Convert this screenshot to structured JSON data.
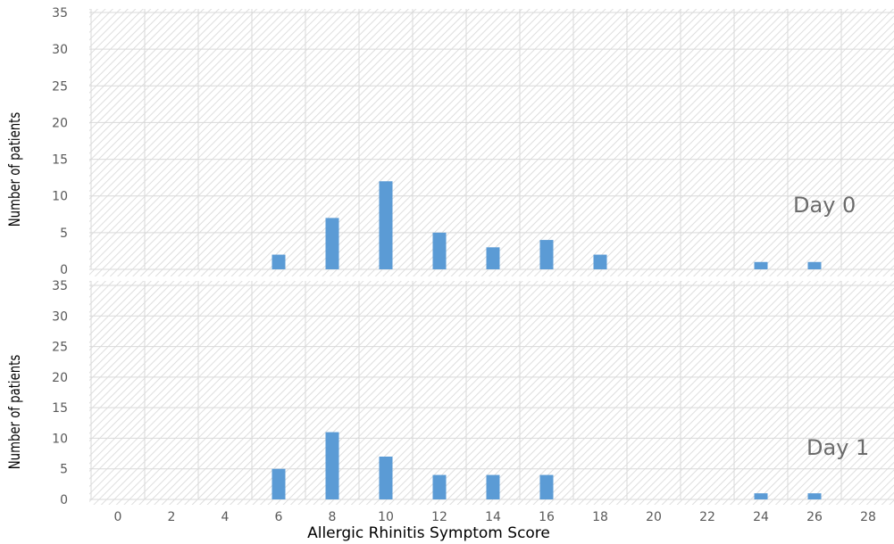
{
  "chart_data": [
    {
      "type": "bar",
      "annotation": "Day 0",
      "ylabel": "Number of patients",
      "xlabel": "",
      "ylim": [
        0,
        35
      ],
      "yticks": [
        0,
        5,
        10,
        15,
        20,
        25,
        30,
        35
      ],
      "x_ticks": [
        0,
        2,
        4,
        6,
        8,
        10,
        12,
        14,
        16,
        18,
        20,
        22,
        24,
        26,
        28
      ],
      "x": [
        6,
        8,
        10,
        12,
        14,
        16,
        18,
        24,
        26
      ],
      "values": [
        2,
        7,
        12,
        5,
        3,
        4,
        2,
        1,
        1
      ],
      "grid": true,
      "bar_color": "#5b9bd5"
    },
    {
      "type": "bar",
      "annotation": "Day 1",
      "ylabel": "Number of patients",
      "xlabel": "Allergic Rhinitis Symptom Score",
      "ylim": [
        0,
        35
      ],
      "yticks": [
        0,
        5,
        10,
        15,
        20,
        25,
        30,
        35
      ],
      "x_ticks": [
        0,
        2,
        4,
        6,
        8,
        10,
        12,
        14,
        16,
        18,
        20,
        22,
        24,
        26,
        28
      ],
      "x": [
        6,
        8,
        10,
        12,
        14,
        16,
        24,
        26
      ],
      "values": [
        5,
        11,
        7,
        4,
        4,
        4,
        1,
        1
      ],
      "grid": true,
      "bar_color": "#5b9bd5"
    }
  ]
}
